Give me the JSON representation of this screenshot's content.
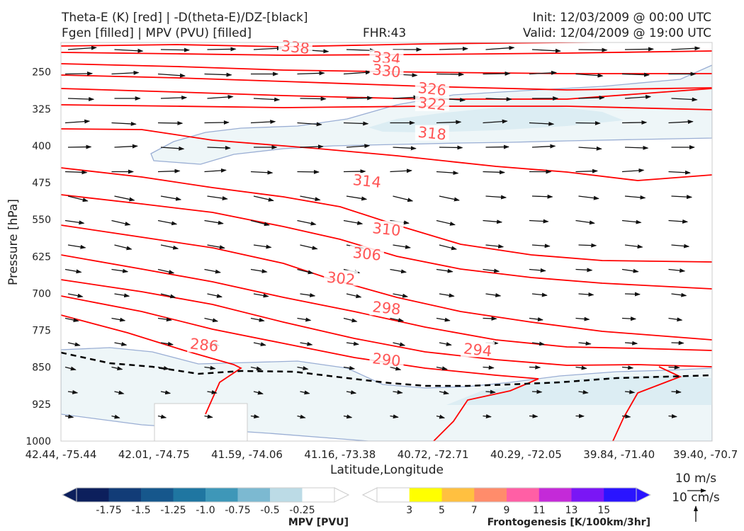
{
  "header": {
    "title_left_1": "Theta-E (K) [red] | -D(theta-E)/DZ-[black]",
    "title_left_2": "Fgen [filled] | MPV (PVU) [filled]",
    "fhr": "FHR:43",
    "init": "Init: 12/03/2009 @ 00:00 UTC",
    "valid": "Valid: 12/04/2009 @ 19:00 UTC"
  },
  "chart_data": {
    "type": "cross-section",
    "title": "Theta-E (K) [red] | -D(theta-E)/DZ-[black]",
    "xlabel": "Latitude,Longitude",
    "ylabel": "Pressure [hPa]",
    "ylim": [
      1000,
      190
    ],
    "x_ticks": [
      "42.44, -75.44",
      "42.01, -74.75",
      "41.59, -74.06",
      "41.16, -73.38",
      "40.72, -72.71",
      "40.29, -72.05",
      "39.84, -71.40",
      "39.40, -70.7"
    ],
    "y_ticks": [
      250,
      325,
      400,
      475,
      550,
      625,
      700,
      775,
      850,
      925,
      1000
    ],
    "theta_e_labels": [
      {
        "value": "338",
        "x": 0.36,
        "p": 200
      },
      {
        "value": "334",
        "x": 0.5,
        "p": 222
      },
      {
        "value": "330",
        "x": 0.5,
        "p": 248
      },
      {
        "value": "326",
        "x": 0.57,
        "p": 285
      },
      {
        "value": "322",
        "x": 0.57,
        "p": 315
      },
      {
        "value": "318",
        "x": 0.57,
        "p": 375
      },
      {
        "value": "314",
        "x": 0.47,
        "p": 472
      },
      {
        "value": "310",
        "x": 0.5,
        "p": 570
      },
      {
        "value": "306",
        "x": 0.47,
        "p": 620
      },
      {
        "value": "302",
        "x": 0.43,
        "p": 670
      },
      {
        "value": "298",
        "x": 0.5,
        "p": 730
      },
      {
        "value": "294",
        "x": 0.64,
        "p": 815
      },
      {
        "value": "290",
        "x": 0.5,
        "p": 835
      },
      {
        "value": "286",
        "x": 0.22,
        "p": 805
      }
    ],
    "colorbars": [
      {
        "label": "MPV [PVU]",
        "ticks": [
          "-1.75",
          "-1.5",
          "-1.25",
          "-1.0",
          "-0.75",
          "-0.5",
          "-0.25"
        ],
        "colors": [
          "#0c1f5c",
          "#123c77",
          "#16578c",
          "#1f76a1",
          "#3e97b8",
          "#7cb9d1",
          "#bcdbe6",
          "#ffffff"
        ]
      },
      {
        "label": "Frontogenesis [K/100km/3hr]",
        "ticks": [
          "3",
          "5",
          "7",
          "9",
          "11",
          "13",
          "15"
        ],
        "colors": [
          "#ffffff",
          "#ffff00",
          "#ffc040",
          "#ff8c6b",
          "#ff5fa5",
          "#c42ad8",
          "#7a16f5",
          "#2a14ff"
        ]
      }
    ],
    "grid": false
  },
  "vector_key": {
    "wind_label": "10 m/s",
    "omega_label": "10 cm/s"
  }
}
